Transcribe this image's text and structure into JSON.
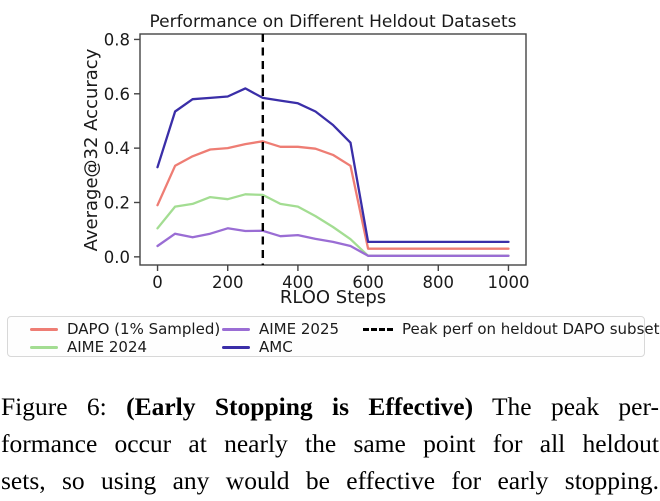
{
  "chart_data": {
    "type": "line",
    "title": "Performance on Different Heldout Datasets",
    "xlabel": "RLOO Steps",
    "ylabel": "Average@32 Accuracy",
    "xlim": [
      -50,
      1050
    ],
    "ylim": [
      -0.03,
      0.82
    ],
    "xticks": [
      0,
      200,
      400,
      600,
      800,
      1000
    ],
    "yticks": [
      0.0,
      0.2,
      0.4,
      0.6,
      0.8
    ],
    "grid": false,
    "legend_position": "below",
    "x": [
      0,
      50,
      100,
      150,
      200,
      250,
      300,
      350,
      400,
      450,
      500,
      550,
      600,
      650,
      700,
      750,
      800,
      850,
      900,
      950,
      1000
    ],
    "series": [
      {
        "name": "DAPO (1% Sampled)",
        "color": "#ee7d74",
        "values": [
          0.19,
          0.335,
          0.37,
          0.395,
          0.4,
          0.415,
          0.425,
          0.405,
          0.405,
          0.398,
          0.375,
          0.335,
          0.03,
          0.03,
          0.03,
          0.03,
          0.03,
          0.03,
          0.03,
          0.03,
          0.03
        ]
      },
      {
        "name": "AIME 2024",
        "color": "#a3dd92",
        "values": [
          0.105,
          0.185,
          0.195,
          0.22,
          0.212,
          0.23,
          0.228,
          0.195,
          0.185,
          0.15,
          0.11,
          0.065,
          0.004,
          0.004,
          0.004,
          0.004,
          0.004,
          0.004,
          0.004,
          0.004,
          0.004
        ]
      },
      {
        "name": "AIME 2025",
        "color": "#9a6dd4",
        "values": [
          0.04,
          0.085,
          0.072,
          0.085,
          0.105,
          0.095,
          0.096,
          0.076,
          0.08,
          0.066,
          0.055,
          0.04,
          0.004,
          0.004,
          0.004,
          0.004,
          0.004,
          0.004,
          0.004,
          0.004,
          0.004
        ]
      },
      {
        "name": "AMC",
        "color": "#3a2ea8",
        "values": [
          0.33,
          0.535,
          0.58,
          0.585,
          0.59,
          0.62,
          0.585,
          0.575,
          0.565,
          0.535,
          0.485,
          0.42,
          0.055,
          0.055,
          0.055,
          0.055,
          0.055,
          0.055,
          0.055,
          0.055,
          0.055
        ]
      }
    ],
    "vline": {
      "x": 300,
      "label": "Peak perf on heldout DAPO subset",
      "style": "dashed",
      "color": "#000000"
    }
  },
  "caption": {
    "line1_pre": "Figure 6: ",
    "line1_bold": "(Early Stopping is Effective)",
    "line1_post": " The peak per-",
    "line2": "formance occur at nearly the same point for all heldout",
    "line3": "sets, so using any would be effective for early stopping."
  }
}
